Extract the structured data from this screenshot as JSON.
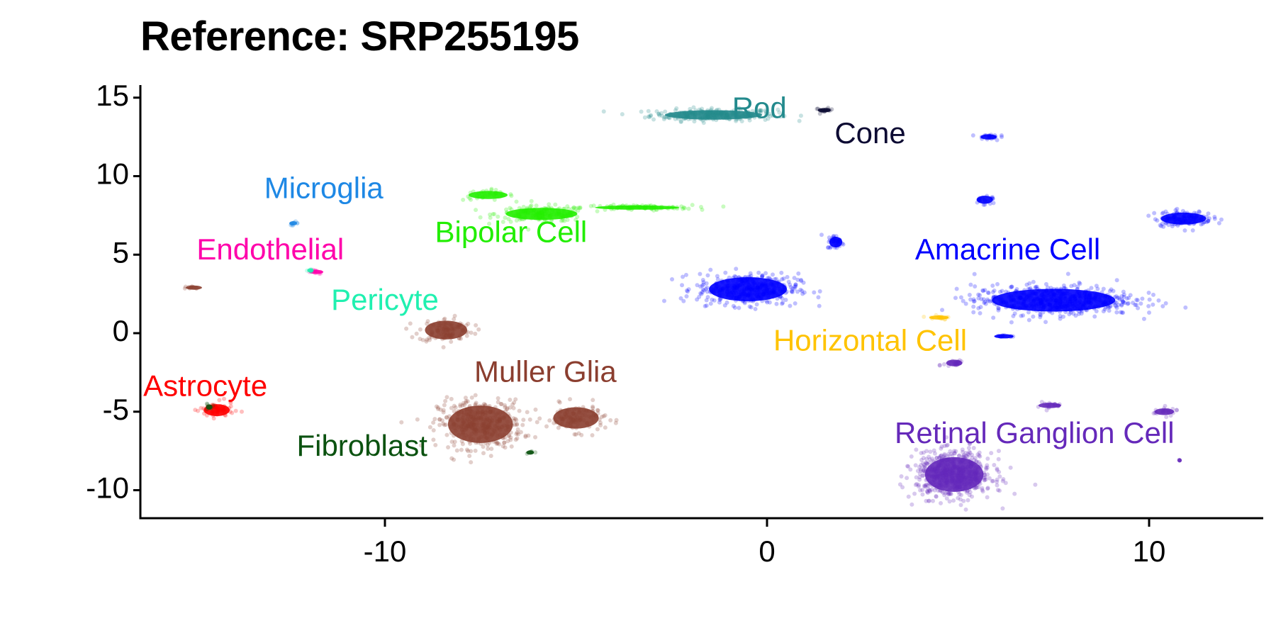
{
  "title": "Reference: SRP255195",
  "chart_data": {
    "type": "scatter",
    "title": "Reference: SRP255195",
    "xlabel": "",
    "ylabel": "",
    "xlim": [
      -16.5,
      13
    ],
    "ylim": [
      -11.8,
      15.8
    ],
    "xticks": [
      -10,
      0,
      10
    ],
    "yticks": [
      15,
      10,
      5,
      0,
      -5,
      -10
    ],
    "grid": false,
    "legend": "none (direct labels)",
    "series": [
      {
        "name": "Rod",
        "color": "#238A8D",
        "label_pos": [
          -0.2,
          14.2
        ],
        "clusters": [
          {
            "cx": -1.4,
            "cy": 13.9,
            "rx": 1.5,
            "ry": 0.35,
            "n": 260
          }
        ]
      },
      {
        "name": "Cone",
        "color": "#0D0B33",
        "label_pos": [
          2.7,
          12.6
        ],
        "clusters": [
          {
            "cx": 1.5,
            "cy": 14.2,
            "rx": 0.2,
            "ry": 0.12,
            "n": 20
          }
        ]
      },
      {
        "name": "Microglia",
        "color": "#1E88E5",
        "label_pos": [
          -11.6,
          9.1
        ],
        "clusters": [
          {
            "cx": -12.4,
            "cy": 7.0,
            "rx": 0.12,
            "ry": 0.1,
            "n": 10
          }
        ]
      },
      {
        "name": "Endothelial",
        "color": "#FF00AA",
        "label_pos": [
          -13.0,
          5.2
        ],
        "clusters": [
          {
            "cx": -11.8,
            "cy": 3.9,
            "rx": 0.22,
            "ry": 0.12,
            "n": 12
          }
        ]
      },
      {
        "name": "Pericyte",
        "color": "#20F0B0",
        "label_pos": [
          -10.0,
          2.0
        ],
        "clusters": [
          {
            "cx": -11.95,
            "cy": 4.0,
            "rx": 0.1,
            "ry": 0.1,
            "n": 6
          }
        ]
      },
      {
        "name": "Bipolar Cell",
        "color": "#22EE00",
        "label_pos": [
          -6.7,
          6.3
        ],
        "clusters": [
          {
            "cx": -7.3,
            "cy": 8.8,
            "rx": 0.6,
            "ry": 0.3,
            "n": 40
          },
          {
            "cx": -5.9,
            "cy": 7.6,
            "rx": 1.1,
            "ry": 0.45,
            "n": 180
          },
          {
            "cx": -3.4,
            "cy": 8.0,
            "rx": 1.3,
            "ry": 0.15,
            "n": 100
          }
        ]
      },
      {
        "name": "Muller Glia",
        "color": "#8B3E2F",
        "label_pos": [
          -5.8,
          -2.6
        ],
        "clusters": [
          {
            "cx": -15.0,
            "cy": 2.9,
            "rx": 0.25,
            "ry": 0.1,
            "n": 10
          },
          {
            "cx": -8.4,
            "cy": 0.2,
            "rx": 0.65,
            "ry": 0.7,
            "n": 120
          },
          {
            "cx": -7.5,
            "cy": -5.8,
            "rx": 1.0,
            "ry": 1.4,
            "n": 400
          },
          {
            "cx": -5.0,
            "cy": -5.4,
            "rx": 0.7,
            "ry": 0.8,
            "n": 120
          }
        ]
      },
      {
        "name": "Astrocyte",
        "color": "#FF0000",
        "label_pos": [
          -14.7,
          -3.5
        ],
        "clusters": [
          {
            "cx": -14.4,
            "cy": -4.9,
            "rx": 0.4,
            "ry": 0.45,
            "n": 80
          }
        ]
      },
      {
        "name": "Fibroblast",
        "color": "#0B5210",
        "label_pos": [
          -10.6,
          -7.3
        ],
        "clusters": [
          {
            "cx": -6.2,
            "cy": -7.6,
            "rx": 0.12,
            "ry": 0.15,
            "n": 6
          },
          {
            "cx": -14.6,
            "cy": -4.7,
            "rx": 0.1,
            "ry": 0.2,
            "n": 6
          }
        ]
      },
      {
        "name": "Amacrine Cell",
        "color": "#0000FF",
        "label_pos": [
          6.3,
          5.2
        ],
        "clusters": [
          {
            "cx": -0.5,
            "cy": 2.8,
            "rx": 1.2,
            "ry": 0.9,
            "n": 420
          },
          {
            "cx": 1.8,
            "cy": 5.8,
            "rx": 0.2,
            "ry": 0.4,
            "n": 40
          },
          {
            "cx": 7.5,
            "cy": 2.1,
            "rx": 1.9,
            "ry": 0.85,
            "n": 600
          },
          {
            "cx": 10.9,
            "cy": 7.3,
            "rx": 0.7,
            "ry": 0.45,
            "n": 140
          },
          {
            "cx": 5.8,
            "cy": 12.5,
            "rx": 0.25,
            "ry": 0.2,
            "n": 20
          },
          {
            "cx": 5.7,
            "cy": 8.5,
            "rx": 0.25,
            "ry": 0.3,
            "n": 20
          },
          {
            "cx": 6.2,
            "cy": -0.2,
            "rx": 0.3,
            "ry": 0.1,
            "n": 12
          }
        ]
      },
      {
        "name": "Horizontal Cell",
        "color": "#FFC300",
        "label_pos": [
          2.7,
          -0.6
        ],
        "clusters": [
          {
            "cx": 4.5,
            "cy": 1.0,
            "rx": 0.3,
            "ry": 0.15,
            "n": 15
          }
        ]
      },
      {
        "name": "Retinal Ganglion Cell",
        "color": "#6529BA",
        "label_pos": [
          7.0,
          -6.5
        ],
        "clusters": [
          {
            "cx": 4.9,
            "cy": -9.0,
            "rx": 0.9,
            "ry": 1.3,
            "n": 700
          },
          {
            "cx": 4.9,
            "cy": -1.9,
            "rx": 0.25,
            "ry": 0.25,
            "n": 25
          },
          {
            "cx": 7.4,
            "cy": -4.6,
            "rx": 0.35,
            "ry": 0.2,
            "n": 20
          },
          {
            "cx": 10.4,
            "cy": -5.0,
            "rx": 0.3,
            "ry": 0.25,
            "n": 25
          },
          {
            "cx": 10.8,
            "cy": -8.1,
            "rx": 0.05,
            "ry": 0.05,
            "n": 2
          }
        ]
      }
    ]
  }
}
